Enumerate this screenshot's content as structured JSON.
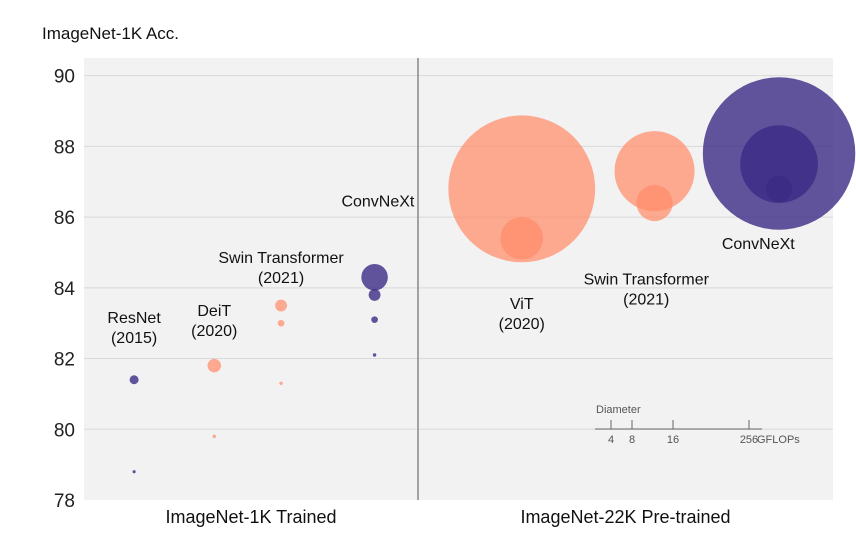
{
  "chart_data": {
    "type": "scatter",
    "ylabel": "ImageNet-1K Acc.",
    "ylim": [
      78,
      90.5
    ],
    "yticks": [
      78,
      80,
      82,
      84,
      86,
      88,
      90
    ],
    "grid": true,
    "groups": [
      "ImageNet-1K Trained",
      "ImageNet-22K Pre-trained"
    ],
    "colors": {
      "orange": "#FF8C69",
      "purple": "#3C2A85",
      "background": "#F2F2F2",
      "grid": "#D9D9D9",
      "divider": "#888888"
    },
    "labels": [
      {
        "group": 0,
        "x": 0.15,
        "acc": 83.0,
        "lines": [
          "ResNet",
          "(2015)"
        ]
      },
      {
        "group": 0,
        "x": 0.39,
        "acc": 83.2,
        "lines": [
          "DeiT",
          "(2020)"
        ]
      },
      {
        "group": 0,
        "x": 0.59,
        "acc": 84.7,
        "lines": [
          "Swin Transformer",
          "(2021)"
        ]
      },
      {
        "group": 0,
        "x": 0.88,
        "acc": 86.3,
        "lines": [
          "ConvNeXt"
        ]
      },
      {
        "group": 1,
        "x": 0.25,
        "acc": 83.4,
        "lines": [
          "ViT",
          "(2020)"
        ]
      },
      {
        "group": 1,
        "x": 0.55,
        "acc": 84.1,
        "lines": [
          "Swin Transformer",
          "(2021)"
        ]
      },
      {
        "group": 1,
        "x": 0.82,
        "acc": 85.1,
        "lines": [
          "ConvNeXt"
        ]
      }
    ],
    "series": [
      {
        "name": "ResNet",
        "group": 0,
        "color": "purple",
        "points": [
          {
            "x": 0.15,
            "acc": 81.4,
            "size": 11.6
          },
          {
            "x": 0.15,
            "acc": 78.8,
            "size": 4.1
          }
        ]
      },
      {
        "name": "DeiT",
        "group": 0,
        "color": "orange",
        "points": [
          {
            "x": 0.39,
            "acc": 81.8,
            "size": 17.5
          },
          {
            "x": 0.39,
            "acc": 79.8,
            "size": 4.6
          }
        ]
      },
      {
        "name": "Swin Transformer",
        "group": 0,
        "color": "orange",
        "points": [
          {
            "x": 0.59,
            "acc": 83.5,
            "size": 15.4
          },
          {
            "x": 0.59,
            "acc": 83.0,
            "size": 8.7
          },
          {
            "x": 0.59,
            "acc": 81.3,
            "size": 4.5
          }
        ]
      },
      {
        "name": "ConvNeXt",
        "group": 0,
        "color": "purple",
        "points": [
          {
            "x": 0.87,
            "acc": 84.3,
            "size": 34.4
          },
          {
            "x": 0.87,
            "acc": 83.8,
            "size": 15.4
          },
          {
            "x": 0.87,
            "acc": 83.1,
            "size": 8.7
          },
          {
            "x": 0.87,
            "acc": 82.1,
            "size": 4.5
          }
        ]
      },
      {
        "name": "ViT",
        "group": 1,
        "color": "orange",
        "points": [
          {
            "x": 0.25,
            "acc": 86.8,
            "size": 190.7
          },
          {
            "x": 0.25,
            "acc": 85.4,
            "size": 55.4
          }
        ]
      },
      {
        "name": "Swin Transformer",
        "group": 1,
        "color": "orange",
        "points": [
          {
            "x": 0.57,
            "acc": 87.3,
            "size": 103.9
          },
          {
            "x": 0.57,
            "acc": 86.4,
            "size": 47.1
          }
        ]
      },
      {
        "name": "ConvNeXt",
        "group": 1,
        "color": "purple",
        "points": [
          {
            "x": 0.87,
            "acc": 87.8,
            "size": 198.0
          },
          {
            "x": 0.87,
            "acc": 87.5,
            "size": 101.0
          },
          {
            "x": 0.87,
            "acc": 86.8,
            "size": 34.4
          }
        ]
      }
    ],
    "size_legend": {
      "title": "Diameter",
      "ticks": [
        4,
        8,
        16,
        256
      ],
      "tick_labels": [
        "4",
        "8",
        "16",
        "256"
      ],
      "unit": "GFLOPs"
    }
  }
}
